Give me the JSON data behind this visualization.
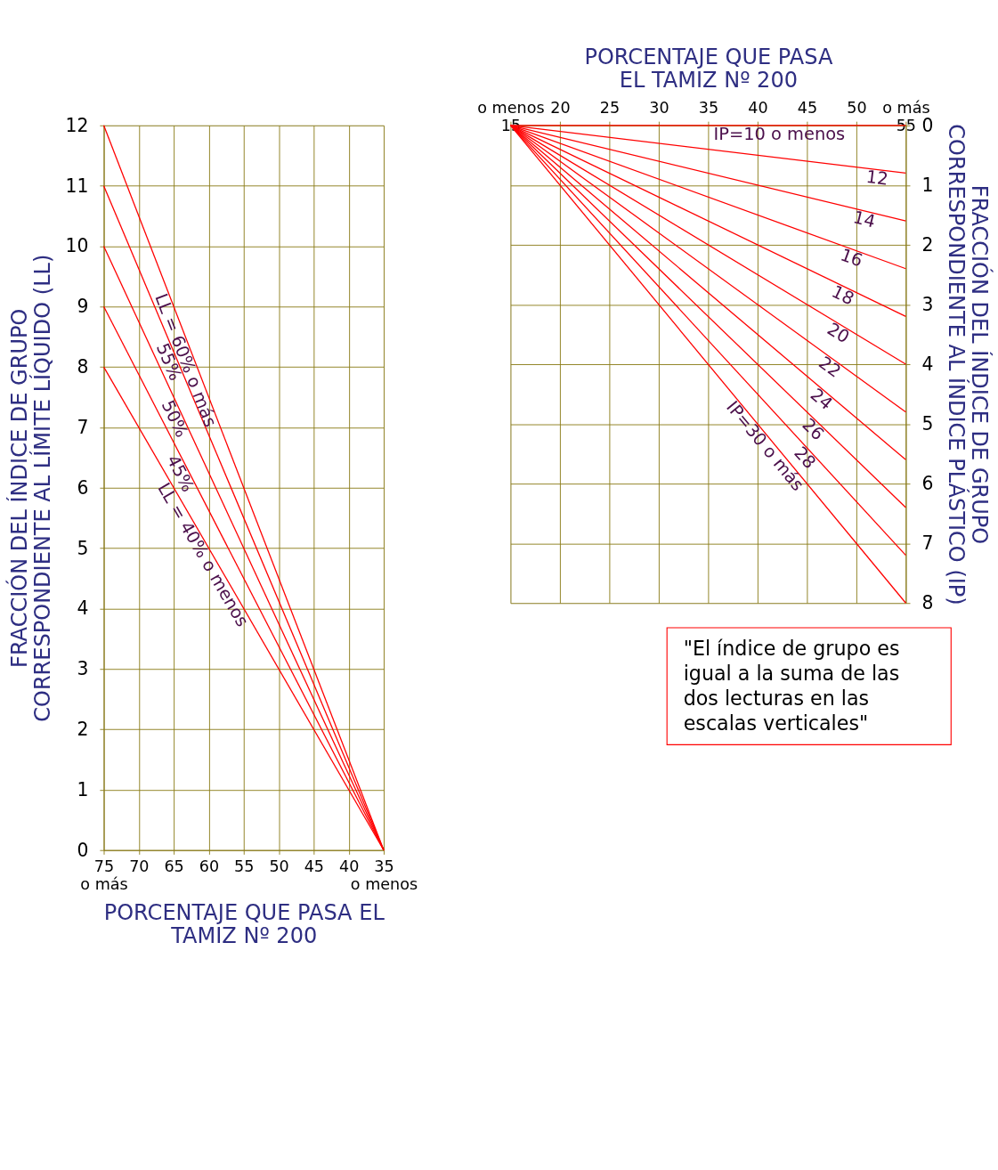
{
  "chart_data": [
    {
      "type": "line",
      "xlabel": "PORCENTAJE QUE PASA EL\nTAMIZ Nº 200",
      "ylabel": "FRACCIÓN DEL ÍNDICE DE GRUPO\nCORRESPONDIENTE AL LÍMITE LÍQUIDO (LL)",
      "xlim": [
        75,
        35
      ],
      "ylim": [
        0,
        12
      ],
      "xticks": [
        {
          "value": 75,
          "label": "75\no más"
        },
        70,
        65,
        60,
        55,
        50,
        45,
        40,
        {
          "value": 35,
          "label": "35\no menos"
        }
      ],
      "yticks": [
        0,
        1,
        2,
        3,
        4,
        5,
        6,
        7,
        8,
        9,
        10,
        11,
        12
      ],
      "grid": true,
      "series": [
        {
          "name": "LL = 40% o menos",
          "color": "#ff0000",
          "x": [
            35,
            75
          ],
          "values": [
            0,
            8
          ]
        },
        {
          "name": "45%",
          "color": "#ff0000",
          "x": [
            35,
            75
          ],
          "values": [
            0,
            9
          ]
        },
        {
          "name": "50%",
          "color": "#ff0000",
          "x": [
            35,
            75
          ],
          "values": [
            0,
            10
          ]
        },
        {
          "name": "55%",
          "color": "#ff0000",
          "x": [
            35,
            75
          ],
          "values": [
            0,
            11
          ]
        },
        {
          "name": "LL = 60% o más",
          "color": "#ff0000",
          "x": [
            35,
            75
          ],
          "values": [
            0,
            12
          ]
        }
      ]
    },
    {
      "type": "line",
      "xlabel": "PORCENTAJE QUE PASA\nEL TAMIZ Nº 200",
      "ylabel": "FRACCIÓN DEL ÍNDICE DE GRUPO\nCORRESPONDIENTE AL ÍNDICE PLÁSTICO (IP)",
      "xlim": [
        15,
        55
      ],
      "ylim": [
        8,
        0
      ],
      "xticks": [
        {
          "value": 15,
          "label": "o menos\n15"
        },
        20,
        25,
        30,
        35,
        40,
        45,
        50,
        {
          "value": 55,
          "label": "o más\n55"
        }
      ],
      "yticks": [
        0,
        1,
        2,
        3,
        4,
        5,
        6,
        7,
        8
      ],
      "grid": true,
      "annotations": [
        "\"El índice de grupo es\nigual a la suma de las\ndos lecturas en las\nescalas verticales\""
      ],
      "series": [
        {
          "name": "IP=10 o menos",
          "color": "#ff0000",
          "x": [
            15,
            55
          ],
          "values": [
            0,
            0
          ]
        },
        {
          "name": "12",
          "color": "#ff0000",
          "x": [
            15,
            55
          ],
          "values": [
            0,
            0.8
          ]
        },
        {
          "name": "14",
          "color": "#ff0000",
          "x": [
            15,
            55
          ],
          "values": [
            0,
            1.6
          ]
        },
        {
          "name": "16",
          "color": "#ff0000",
          "x": [
            15,
            55
          ],
          "values": [
            0,
            2.4
          ]
        },
        {
          "name": "18",
          "color": "#ff0000",
          "x": [
            15,
            55
          ],
          "values": [
            0,
            3.2
          ]
        },
        {
          "name": "20",
          "color": "#ff0000",
          "x": [
            15,
            55
          ],
          "values": [
            0,
            4.0
          ]
        },
        {
          "name": "22",
          "color": "#ff0000",
          "x": [
            15,
            55
          ],
          "values": [
            0,
            4.8
          ]
        },
        {
          "name": "24",
          "color": "#ff0000",
          "x": [
            15,
            55
          ],
          "values": [
            0,
            5.6
          ]
        },
        {
          "name": "26",
          "color": "#ff0000",
          "x": [
            15,
            55
          ],
          "values": [
            0,
            6.4
          ]
        },
        {
          "name": "28",
          "color": "#ff0000",
          "x": [
            15,
            55
          ],
          "values": [
            0,
            7.2
          ]
        },
        {
          "name": "IP=30 o más",
          "color": "#ff0000",
          "x": [
            15,
            55
          ],
          "values": [
            0,
            8.0
          ]
        }
      ]
    }
  ]
}
